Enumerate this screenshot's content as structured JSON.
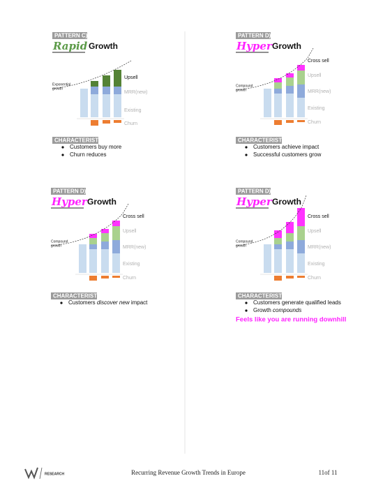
{
  "panels": [
    {
      "pattern": "PATTERN C)",
      "style_word": "Rapid",
      "title_word": "Growth",
      "annotation": [
        "Exponential",
        "growth"
      ],
      "legend": [
        "Upsell",
        "MRR(new)",
        "Existing",
        "Churn"
      ],
      "characteristics_heading": "CHARACTERISTICS",
      "bullets": [
        [
          {
            "text": "Customers buy more"
          }
        ],
        [
          {
            "text": "Churn reduces"
          }
        ]
      ]
    },
    {
      "pattern": "PATTERN D)",
      "style_word": "Hyper",
      "title_word": "Growth",
      "annotation": [
        "Compound",
        "growth"
      ],
      "legend": [
        "Cross sell",
        "Upsell",
        "MRR(new)",
        "Existing",
        "Churn"
      ],
      "characteristics_heading": "CHARACTERISTICS",
      "bullets": [
        [
          {
            "text": "Customers achieve impact"
          }
        ],
        [
          {
            "text": "Successful customers grow"
          }
        ]
      ]
    },
    {
      "pattern": "PATTERN D)",
      "style_word": "Hyper",
      "title_word": "Growth",
      "annotation": [
        "Compound",
        "growth"
      ],
      "legend": [
        "Cross sell",
        "Upsell",
        "MRR(new)",
        "Existing",
        "Churn"
      ],
      "characteristics_heading": "CHARACTERISTICS",
      "bullets": [
        [
          {
            "text": "Customers "
          },
          {
            "text": "discover new",
            "italic": true
          },
          {
            "text": " impact"
          }
        ]
      ]
    },
    {
      "pattern": "PATTERN D)",
      "style_word": "Hyper",
      "title_word": "Growth",
      "annotation": [
        "Compound",
        "growth"
      ],
      "legend": [
        "Cross sell",
        "Upsell",
        "MRR(new)",
        "Existing",
        "Churn"
      ],
      "characteristics_heading": "CHARACTERISTICS",
      "bullets": [
        [
          {
            "text": "Customers generate qualified leads"
          }
        ],
        [
          {
            "text": "Growth "
          },
          {
            "text": "compounds",
            "italic": true
          }
        ]
      ],
      "note": "Feels like you are running downhill"
    }
  ],
  "footer": {
    "logo_text": "RESEARCH",
    "title": "Recurring Revenue Growth Trends in Europe",
    "page": "11of 11"
  }
}
